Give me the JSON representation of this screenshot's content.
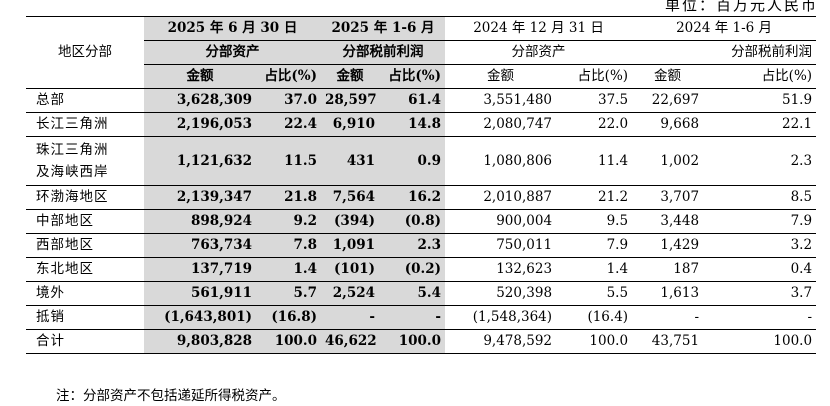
{
  "unit_label": "单位：百万元人民币",
  "header": {
    "row_label": "地区分部",
    "group1_period": "2025 年 6 月 30 日",
    "group2_period": "2025 年 1-6 月",
    "group3_period": "2024 年 12 月 31 日",
    "group4_period": "2024 年 1-6 月",
    "group1_metric": "分部资产",
    "group2_metric": "分部税前利润",
    "group3_metric": "分部资产",
    "group4_metric": "分部税前利润",
    "amount": "金额",
    "ratio": "占比(%)"
  },
  "rows": [
    {
      "name": "总部",
      "a1": "3,628,309",
      "r1": "37.0",
      "a2": "28,597",
      "r2": "61.4",
      "a3": "3,551,480",
      "r3": "37.5",
      "a4": "22,697",
      "r4": "51.9"
    },
    {
      "name": "长江三角洲",
      "a1": "2,196,053",
      "r1": "22.4",
      "a2": "6,910",
      "r2": "14.8",
      "a3": "2,080,747",
      "r3": "22.0",
      "a4": "9,668",
      "r4": "22.1"
    },
    {
      "name_line1": "珠江三角洲",
      "name_line2": "及海峡西岸",
      "a1": "1,121,632",
      "r1": "11.5",
      "a2": "431",
      "r2": "0.9",
      "a3": "1,080,806",
      "r3": "11.4",
      "a4": "1,002",
      "r4": "2.3"
    },
    {
      "name": "环渤海地区",
      "a1": "2,139,347",
      "r1": "21.8",
      "a2": "7,564",
      "r2": "16.2",
      "a3": "2,010,887",
      "r3": "21.2",
      "a4": "3,707",
      "r4": "8.5"
    },
    {
      "name": "中部地区",
      "a1": "898,924",
      "r1": "9.2",
      "a2": "(394)",
      "r2": "(0.8)",
      "a3": "900,004",
      "r3": "9.5",
      "a4": "3,448",
      "r4": "7.9"
    },
    {
      "name": "西部地区",
      "a1": "763,734",
      "r1": "7.8",
      "a2": "1,091",
      "r2": "2.3",
      "a3": "750,011",
      "r3": "7.9",
      "a4": "1,429",
      "r4": "3.2"
    },
    {
      "name": "东北地区",
      "a1": "137,719",
      "r1": "1.4",
      "a2": "(101)",
      "r2": "(0.2)",
      "a3": "132,623",
      "r3": "1.4",
      "a4": "187",
      "r4": "0.4"
    },
    {
      "name": "境外",
      "a1": "561,911",
      "r1": "5.7",
      "a2": "2,524",
      "r2": "5.4",
      "a3": "520,398",
      "r3": "5.5",
      "a4": "1,613",
      "r4": "3.7"
    },
    {
      "name": "抵销",
      "a1": "(1,643,801)",
      "r1": "(16.8)",
      "a2": "-",
      "r2": "-",
      "a3": "(1,548,364)",
      "r3": "(16.4)",
      "a4": "-",
      "r4": "-"
    },
    {
      "name": "合计",
      "a1": "9,803,828",
      "r1": "100.0",
      "a2": "46,622",
      "r2": "100.0",
      "a3": "9,478,592",
      "r3": "100.0",
      "a4": "43,751",
      "r4": "100.0"
    }
  ],
  "note": "注：分部资产不包括递延所得税资产。",
  "colors": {
    "highlight": "#d9d9d9"
  }
}
